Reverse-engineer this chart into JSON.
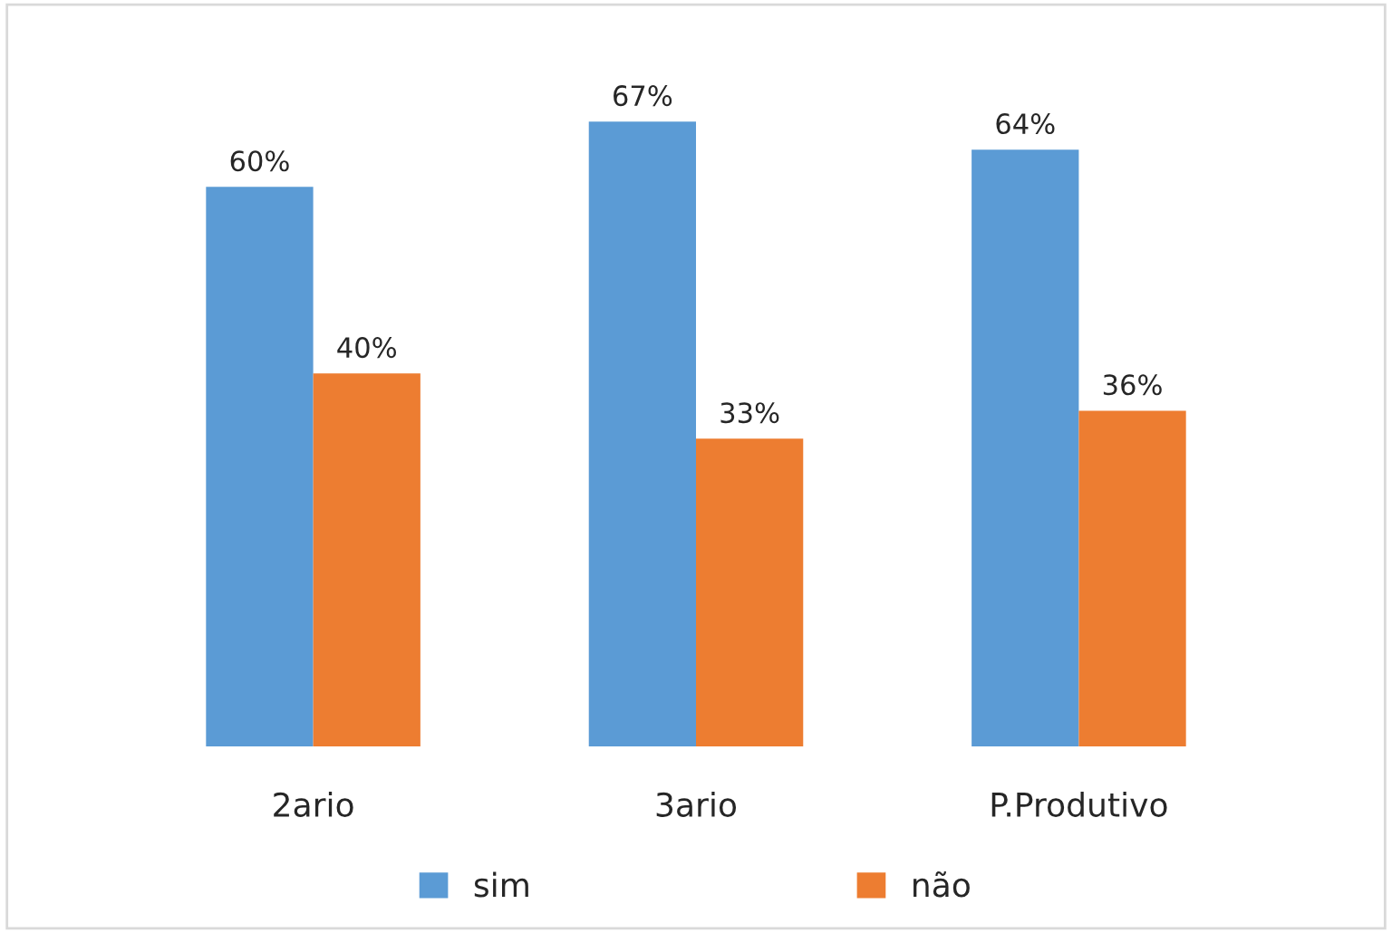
{
  "chart_data": {
    "type": "bar",
    "categories": [
      "2ario",
      "3ario",
      "P.Produtivo"
    ],
    "series": [
      {
        "name": "sim",
        "color": "#5b9bd5",
        "values": [
          60,
          67,
          64
        ],
        "value_labels": [
          "60%",
          "67%",
          "64%"
        ]
      },
      {
        "name": "não",
        "color": "#ed7d31",
        "values": [
          40,
          33,
          36
        ],
        "value_labels": [
          "40%",
          "33%",
          "36%"
        ]
      }
    ],
    "legend": "bottom",
    "grid": false
  }
}
